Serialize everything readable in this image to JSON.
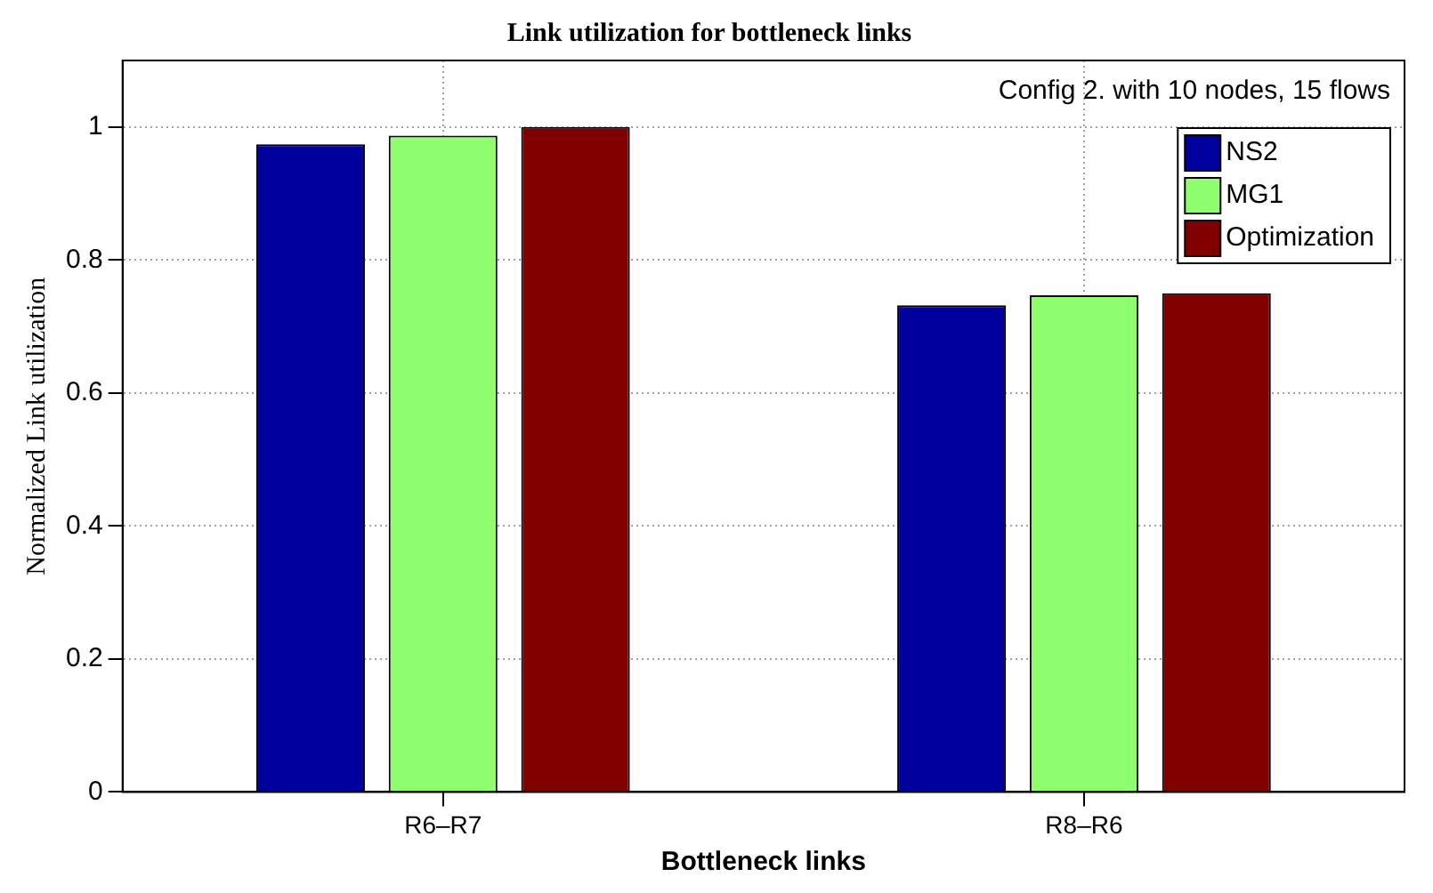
{
  "chart_data": {
    "type": "bar",
    "title": "Link utilization for bottleneck links",
    "xlabel": "Bottleneck links",
    "ylabel": "Normalized Link utilization",
    "categories": [
      "R6–R7",
      "R8–R6"
    ],
    "series": [
      {
        "name": "NS2",
        "color": "#00009c",
        "values": [
          0.974,
          0.732
        ]
      },
      {
        "name": "MG1",
        "color": "#8fff6f",
        "values": [
          0.987,
          0.747
        ]
      },
      {
        "name": "Optimization",
        "color": "#800000",
        "values": [
          1.0,
          0.75
        ]
      }
    ],
    "ylim": [
      0,
      1.1
    ],
    "yticks": [
      0,
      0.2,
      0.4,
      0.6,
      0.8,
      1
    ],
    "grid": true,
    "legend": "top right",
    "annotations": [
      "Config 2. with 10 nodes, 15 flows"
    ]
  }
}
